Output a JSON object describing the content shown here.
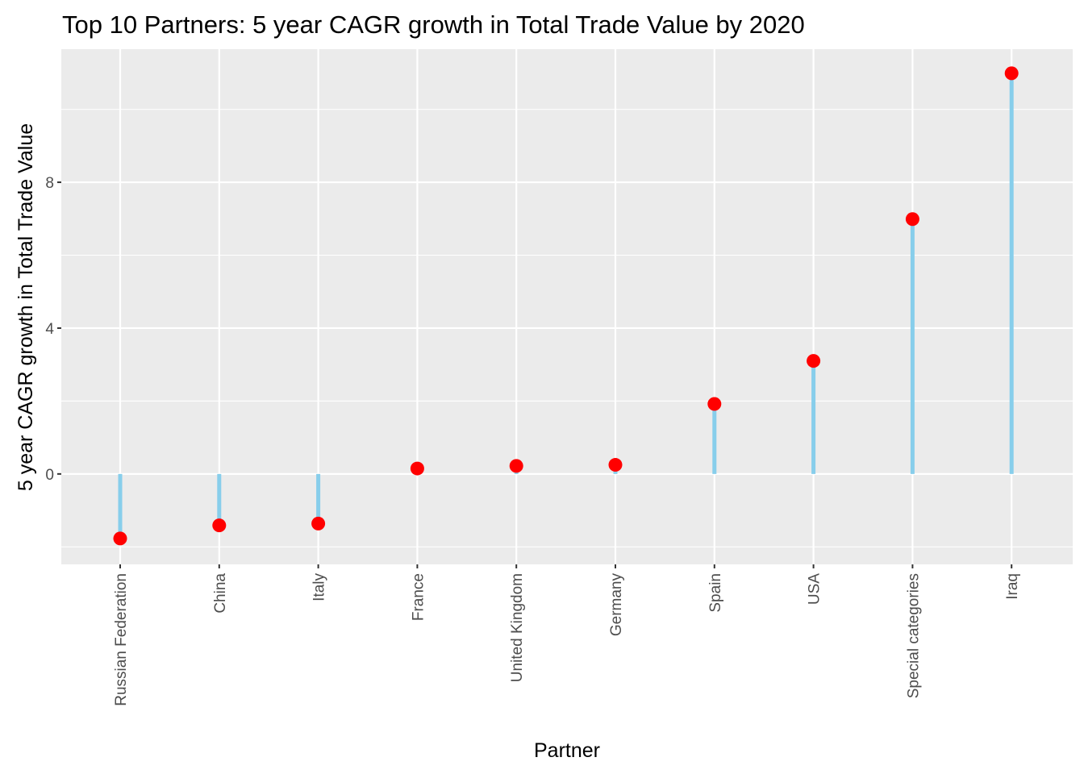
{
  "chart_data": {
    "type": "lollipop",
    "title": "Top 10 Partners: 5 year CAGR growth in Total Trade Value by 2020",
    "xlabel": "Partner",
    "ylabel": "5 year CAGR growth in Total Trade Value",
    "categories": [
      "Russian Federation",
      "China",
      "Italy",
      "France",
      "United Kingdom",
      "Germany",
      "Spain",
      "USA",
      "Special categories",
      "Iraq"
    ],
    "values": [
      -1.77,
      -1.41,
      -1.36,
      0.15,
      0.22,
      0.25,
      1.92,
      3.1,
      6.99,
      10.99
    ],
    "ylim": [
      -2.48,
      11.65
    ],
    "y_ticks": [
      0,
      4,
      8
    ],
    "y_tick_labels": [
      "0",
      "4",
      "8"
    ],
    "y_minor_ticks": [
      -2,
      2,
      6,
      10
    ],
    "grid": true,
    "legend": "none",
    "colors": {
      "panel_background": "#ebebeb",
      "grid_line": "#ffffff",
      "stem": "#87ceeb",
      "point": "#ff0000",
      "axis_tick": "#333333"
    }
  }
}
